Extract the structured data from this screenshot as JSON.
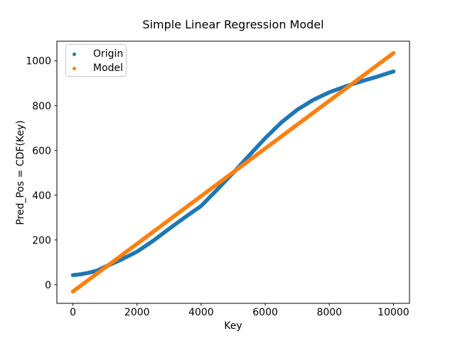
{
  "chart_data": {
    "type": "scatter",
    "title": "Simple Linear Regression Model",
    "xlabel": "Key",
    "ylabel": "Pred_Pos = CDF(Key)",
    "xlim": [
      -500,
      10500
    ],
    "ylim": [
      -83,
      1088
    ],
    "x_ticks": [
      0,
      2000,
      4000,
      6000,
      8000,
      10000
    ],
    "y_ticks": [
      0,
      200,
      400,
      600,
      800,
      1000
    ],
    "grid": false,
    "legend_position": "upper left",
    "marker": "dot",
    "axis_color": "#000000",
    "background": "#ffffff",
    "series": [
      {
        "name": "Origin",
        "color": "#1f77b4",
        "shape": "s-curve (CDF)",
        "points": [
          [
            0,
            43
          ],
          [
            250,
            47
          ],
          [
            500,
            54
          ],
          [
            750,
            63
          ],
          [
            1000,
            80
          ],
          [
            1500,
            112
          ],
          [
            2000,
            148
          ],
          [
            2500,
            196
          ],
          [
            3000,
            250
          ],
          [
            3500,
            302
          ],
          [
            4000,
            352
          ],
          [
            4500,
            425
          ],
          [
            5000,
            500
          ],
          [
            5500,
            578
          ],
          [
            6000,
            655
          ],
          [
            6500,
            725
          ],
          [
            7000,
            782
          ],
          [
            7500,
            826
          ],
          [
            8000,
            860
          ],
          [
            8500,
            886
          ],
          [
            9000,
            909
          ],
          [
            9500,
            930
          ],
          [
            10000,
            953
          ]
        ]
      },
      {
        "name": "Model",
        "color": "#ff7f0e",
        "shape": "straight line (linear fit)",
        "points": [
          [
            0,
            -30
          ],
          [
            10000,
            1035
          ]
        ]
      }
    ]
  }
}
